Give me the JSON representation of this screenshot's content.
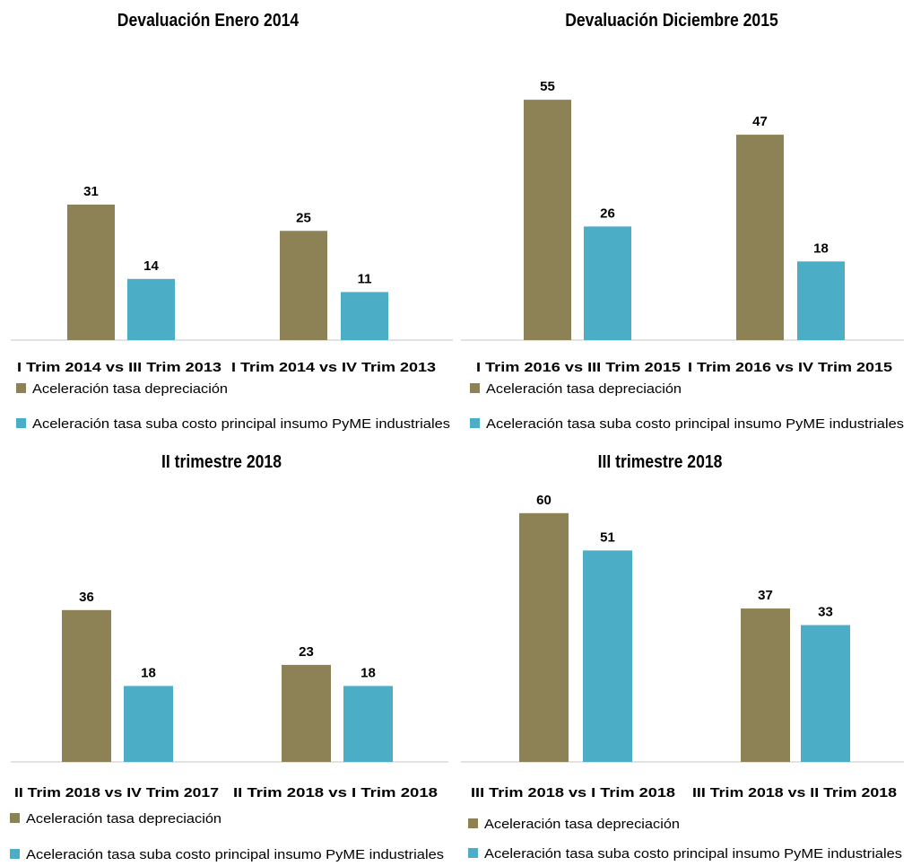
{
  "colors": {
    "series_a": "#8c8255",
    "series_b": "#4badc6",
    "axis": "#d9d9d9"
  },
  "chart_data": [
    {
      "type": "bar",
      "title": "Devaluación Enero 2014",
      "categories": [
        "I Trim 2014 vs III Trim 2013",
        "I Trim 2014 vs IV Trim 2013"
      ],
      "series": [
        {
          "name": "Aceleración tasa depreciación",
          "values": [
            31,
            25
          ]
        },
        {
          "name": "Aceleración tasa suba costo principal insumo PyME industriales",
          "values": [
            14,
            11
          ]
        }
      ],
      "legend": "bottom-left",
      "grid": false,
      "ylim": [
        0,
        65
      ]
    },
    {
      "type": "bar",
      "title": "Devaluación Diciembre 2015",
      "categories": [
        "I Trim 2016 vs III Trim 2015",
        "I Trim 2016 vs IV Trim 2015"
      ],
      "series": [
        {
          "name": "Aceleración tasa depreciación",
          "values": [
            55,
            47
          ]
        },
        {
          "name": "Aceleración tasa suba costo principal insumo PyME industriales",
          "values": [
            26,
            18
          ]
        }
      ],
      "legend": "bottom-left",
      "grid": false,
      "ylim": [
        0,
        65
      ]
    },
    {
      "type": "bar",
      "title": "II trimestre 2018",
      "categories": [
        "II Trim 2018 vs IV Trim 2017",
        "II Trim 2018 vs I Trim 2018"
      ],
      "series": [
        {
          "name": "Aceleración tasa depreciación",
          "values": [
            36,
            23
          ]
        },
        {
          "name": "Aceleración tasa suba costo principal insumo PyME industriales",
          "values": [
            18,
            18
          ]
        }
      ],
      "legend": "bottom-left",
      "grid": false,
      "ylim": [
        0,
        65
      ]
    },
    {
      "type": "bar",
      "title": "III trimestre 2018",
      "categories": [
        "III Trim 2018 vs I Trim 2018",
        "III Trim 2018 vs II Trim 2018"
      ],
      "series": [
        {
          "name": "Aceleración tasa depreciación",
          "values": [
            60,
            37
          ]
        },
        {
          "name": "Aceleración tasa suba costo principal insumo PyME industriales",
          "values": [
            51,
            33
          ]
        }
      ],
      "legend": "bottom-left",
      "grid": false,
      "ylim": [
        0,
        65
      ]
    }
  ]
}
